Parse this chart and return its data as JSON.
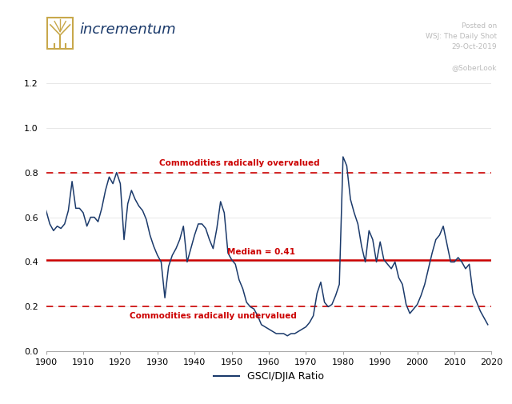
{
  "median": 0.41,
  "overvalued_line": 0.8,
  "undervalued_line": 0.2,
  "line_color": "#1b3a6b",
  "ref_color": "#cc0000",
  "text_overvalued": "Commodities radically overvalued",
  "text_undervalued": "Commodities radically undervalued",
  "text_median": "Median = 0.41",
  "xlabel_legend": "GSCI/DJIA Ratio",
  "logo_text": "incrementum",
  "logo_color": "#1b3a6b",
  "watermark_color": "#bbbbbb",
  "ylim": [
    0.0,
    1.3
  ],
  "xlim": [
    1900,
    2020
  ],
  "yticks": [
    0.0,
    0.2,
    0.4,
    0.6,
    0.8,
    1.0,
    1.2
  ],
  "xticks": [
    1900,
    1910,
    1920,
    1930,
    1940,
    1950,
    1960,
    1970,
    1980,
    1990,
    2000,
    2010,
    2020
  ],
  "years": [
    1900,
    1901,
    1902,
    1903,
    1904,
    1905,
    1906,
    1907,
    1908,
    1909,
    1910,
    1911,
    1912,
    1913,
    1914,
    1915,
    1916,
    1917,
    1918,
    1919,
    1920,
    1921,
    1922,
    1923,
    1924,
    1925,
    1926,
    1927,
    1928,
    1929,
    1930,
    1931,
    1932,
    1933,
    1934,
    1935,
    1936,
    1937,
    1938,
    1939,
    1940,
    1941,
    1942,
    1943,
    1944,
    1945,
    1946,
    1947,
    1948,
    1949,
    1950,
    1951,
    1952,
    1953,
    1954,
    1955,
    1956,
    1957,
    1958,
    1959,
    1960,
    1961,
    1962,
    1963,
    1964,
    1965,
    1966,
    1967,
    1968,
    1969,
    1970,
    1971,
    1972,
    1973,
    1974,
    1975,
    1976,
    1977,
    1978,
    1979,
    1980,
    1981,
    1982,
    1983,
    1984,
    1985,
    1986,
    1987,
    1988,
    1989,
    1990,
    1991,
    1992,
    1993,
    1994,
    1995,
    1996,
    1997,
    1998,
    1999,
    2000,
    2001,
    2002,
    2003,
    2004,
    2005,
    2006,
    2007,
    2008,
    2009,
    2010,
    2011,
    2012,
    2013,
    2014,
    2015,
    2016,
    2017,
    2018,
    2019
  ],
  "values": [
    0.63,
    0.57,
    0.54,
    0.56,
    0.55,
    0.57,
    0.63,
    0.76,
    0.64,
    0.64,
    0.62,
    0.56,
    0.6,
    0.6,
    0.58,
    0.64,
    0.72,
    0.78,
    0.75,
    0.8,
    0.75,
    0.5,
    0.66,
    0.72,
    0.68,
    0.65,
    0.63,
    0.59,
    0.52,
    0.47,
    0.43,
    0.4,
    0.24,
    0.38,
    0.43,
    0.46,
    0.5,
    0.56,
    0.4,
    0.46,
    0.52,
    0.57,
    0.57,
    0.55,
    0.5,
    0.46,
    0.55,
    0.67,
    0.62,
    0.44,
    0.41,
    0.39,
    0.32,
    0.28,
    0.22,
    0.2,
    0.19,
    0.16,
    0.12,
    0.11,
    0.1,
    0.09,
    0.08,
    0.08,
    0.08,
    0.07,
    0.08,
    0.08,
    0.09,
    0.1,
    0.11,
    0.13,
    0.16,
    0.26,
    0.31,
    0.22,
    0.2,
    0.21,
    0.25,
    0.3,
    0.87,
    0.83,
    0.68,
    0.62,
    0.57,
    0.47,
    0.4,
    0.54,
    0.5,
    0.4,
    0.49,
    0.41,
    0.39,
    0.37,
    0.4,
    0.33,
    0.3,
    0.21,
    0.17,
    0.19,
    0.21,
    0.25,
    0.3,
    0.37,
    0.44,
    0.5,
    0.52,
    0.56,
    0.48,
    0.4,
    0.4,
    0.42,
    0.4,
    0.37,
    0.39,
    0.26,
    0.22,
    0.18,
    0.15,
    0.12
  ]
}
